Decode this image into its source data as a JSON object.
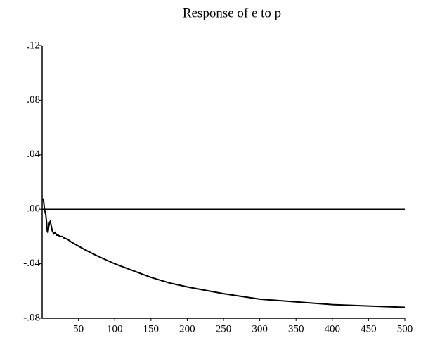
{
  "chart_data": {
    "type": "line",
    "title": "Response of e to p",
    "x": [
      1,
      2,
      3,
      4,
      5,
      6,
      7,
      8,
      9,
      10,
      11,
      12,
      14,
      16,
      18,
      20,
      22,
      25,
      28,
      30,
      35,
      40,
      50,
      60,
      75,
      100,
      125,
      150,
      175,
      200,
      250,
      300,
      350,
      400,
      450,
      500
    ],
    "series": [
      {
        "name": "Response of e to p",
        "color": "#000000",
        "values": [
          0.008,
          0.006,
          0.001,
          -0.002,
          -0.004,
          -0.009,
          -0.016,
          -0.017,
          -0.013,
          -0.01,
          -0.009,
          -0.011,
          -0.016,
          -0.018,
          -0.017,
          -0.019,
          -0.019,
          -0.02,
          -0.02,
          -0.021,
          -0.022,
          -0.024,
          -0.027,
          -0.03,
          -0.034,
          -0.04,
          -0.045,
          -0.05,
          -0.054,
          -0.057,
          -0.062,
          -0.066,
          -0.068,
          -0.07,
          -0.071,
          -0.072
        ]
      }
    ],
    "hline": 0,
    "xlim": [
      0,
      500
    ],
    "xticks": [
      50,
      100,
      150,
      200,
      250,
      300,
      350,
      400,
      450,
      500
    ],
    "ylim": [
      -0.08,
      0.12
    ],
    "yticks": [
      {
        "value": 0.12,
        "label": ".12"
      },
      {
        "value": 0.08,
        "label": ".08"
      },
      {
        "value": 0.04,
        "label": ".04"
      },
      {
        "value": 0,
        "label": ".00"
      },
      {
        "value": -0.04,
        "label": "-.04"
      },
      {
        "value": -0.08,
        "label": "-.08"
      }
    ],
    "grid": false
  }
}
